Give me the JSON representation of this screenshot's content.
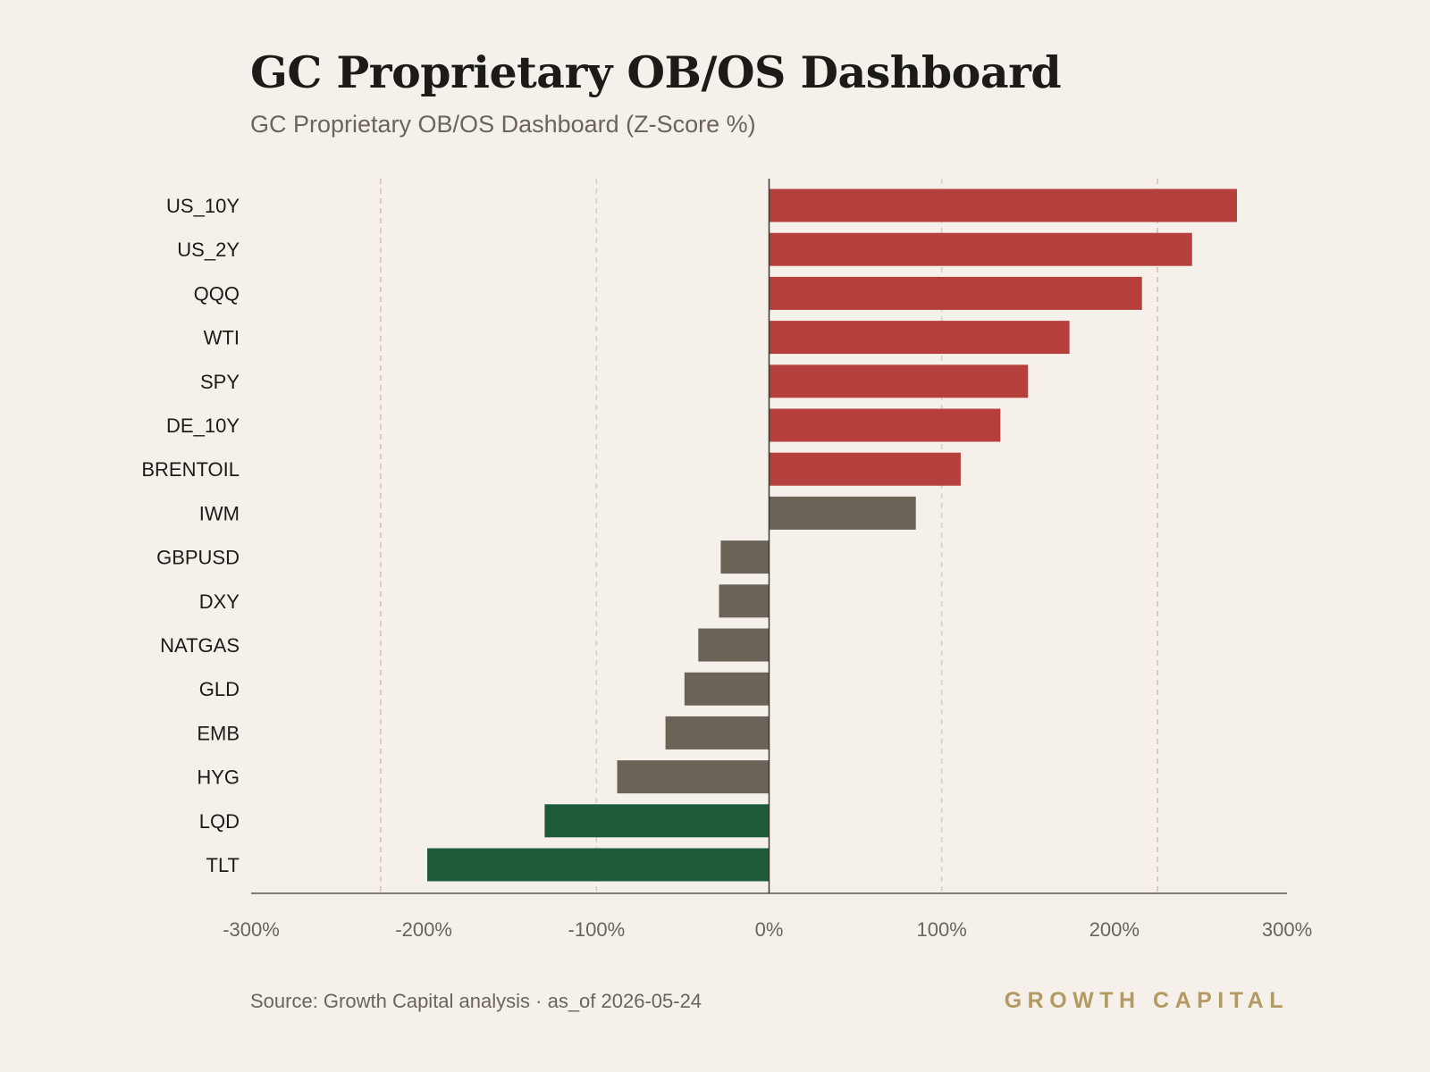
{
  "header": {
    "title": "GC Proprietary OB/OS Dashboard",
    "subtitle": "GC Proprietary OB/OS Dashboard (Z-Score %)"
  },
  "footer": {
    "source": "Source: Growth Capital analysis · as_of 2026-05-24",
    "brand": "GROWTH CAPITAL"
  },
  "colors": {
    "overbought": "#b5403b",
    "neutral": "#6b6358",
    "oversold": "#1f5a3a",
    "gridline": "#dccfb8",
    "threshold_line": "#e0b8ae",
    "axis": "#3a3631",
    "tick_label": "#6b6459",
    "category_label": "#1d1b18"
  },
  "chart_data": {
    "type": "bar",
    "orientation": "horizontal",
    "title": "GC Proprietary OB/OS Dashboard",
    "subtitle": "GC Proprietary OB/OS Dashboard (Z-Score %)",
    "categories": [
      "US_10Y",
      "US_2Y",
      "QQQ",
      "WTI",
      "SPY",
      "DE_10Y",
      "BRENTOIL",
      "IWM",
      "GBPUSD",
      "DXY",
      "NATGAS",
      "GLD",
      "EMB",
      "HYG",
      "LQD",
      "TLT"
    ],
    "values": [
      271,
      245,
      216,
      174,
      150,
      134,
      111,
      85,
      -28,
      -29,
      -41,
      -49,
      -60,
      -88,
      -130,
      -198
    ],
    "status": [
      "overbought",
      "overbought",
      "overbought",
      "overbought",
      "overbought",
      "overbought",
      "overbought",
      "neutral",
      "neutral",
      "neutral",
      "neutral",
      "neutral",
      "neutral",
      "neutral",
      "oversold",
      "oversold"
    ],
    "xlim": [
      -300,
      300
    ],
    "xticks": [
      -300,
      -200,
      -100,
      0,
      100,
      200,
      300
    ],
    "xtick_labels": [
      "-300%",
      "-200%",
      "-100%",
      "0%",
      "100%",
      "200%",
      "300%"
    ],
    "threshold_lines": [
      -225,
      225
    ],
    "gridlines_at": [
      -100,
      100
    ],
    "xlabel": "",
    "ylabel": ""
  }
}
